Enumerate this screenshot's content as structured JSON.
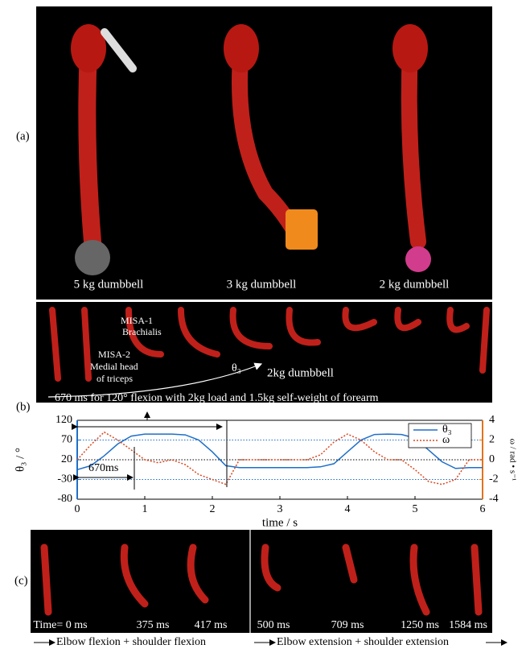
{
  "panel_a": {
    "label": "(a)",
    "captions": [
      "5 kg dumbbell",
      "3 kg dumbbell",
      "2 kg dumbbell"
    ]
  },
  "panel_b": {
    "label": "(b)",
    "misa_1": [
      "MISA-1",
      "Brachialis"
    ],
    "misa_2": [
      "MISA-2",
      "Medial head",
      "of triceps"
    ],
    "angle": "θ₃",
    "load": "2kg dumbbell",
    "caption": "670 ms for 120° flexion with 2kg load and 1.5kg self-weight of forearm"
  },
  "chart_data": {
    "type": "line",
    "x": [
      0,
      0.2,
      0.4,
      0.6,
      0.8,
      1.0,
      1.2,
      1.4,
      1.6,
      1.8,
      2.0,
      2.2,
      2.4,
      2.6,
      2.8,
      3.0,
      3.2,
      3.4,
      3.6,
      3.8,
      4.0,
      4.2,
      4.4,
      4.6,
      4.8,
      5.0,
      5.2,
      5.4,
      5.6,
      5.8,
      6.0
    ],
    "series": [
      {
        "name": "θ₃",
        "color": "#1f6fc8",
        "values": [
          -5,
          5,
          30,
          60,
          80,
          85,
          85,
          85,
          83,
          70,
          40,
          5,
          0,
          0,
          0,
          0,
          0,
          0,
          2,
          10,
          40,
          70,
          84,
          85,
          84,
          75,
          45,
          15,
          -2,
          0,
          0
        ]
      },
      {
        "name": "ω",
        "color": "#d9481f",
        "axis": "y2",
        "values": [
          0,
          1.5,
          2.8,
          2.0,
          1.0,
          0,
          -0.3,
          0,
          -0.5,
          -1.5,
          -2.0,
          -2.5,
          0,
          0,
          0,
          0,
          0,
          0,
          0.5,
          1.8,
          2.6,
          2.0,
          0.8,
          0,
          0,
          -1.0,
          -2.2,
          -2.5,
          -2.0,
          0,
          0
        ]
      }
    ],
    "xlim": [
      0,
      6
    ],
    "xticks": [
      0,
      1,
      2,
      3,
      4,
      5,
      6
    ],
    "ylim": [
      -80,
      120
    ],
    "yticks": [
      -80,
      -30,
      20,
      70,
      120
    ],
    "y2lim": [
      -4,
      4
    ],
    "y2ticks": [
      -4,
      -2,
      0,
      2,
      4
    ],
    "xlabel": "time / s",
    "ylabel": "θ₃ / °",
    "y2label": "ω / rad • s⁻¹",
    "annotation": "670ms",
    "grid": true,
    "legend": "upper right"
  },
  "panel_c": {
    "label": "(c)",
    "times": [
      "Time= 0 ms",
      "375 ms",
      "417 ms",
      "500 ms",
      "709 ms",
      "1250 ms",
      "1584 ms"
    ],
    "phases": [
      "Elbow flexion + shoulder flexion",
      "Elbow extension + shoulder extension"
    ]
  }
}
